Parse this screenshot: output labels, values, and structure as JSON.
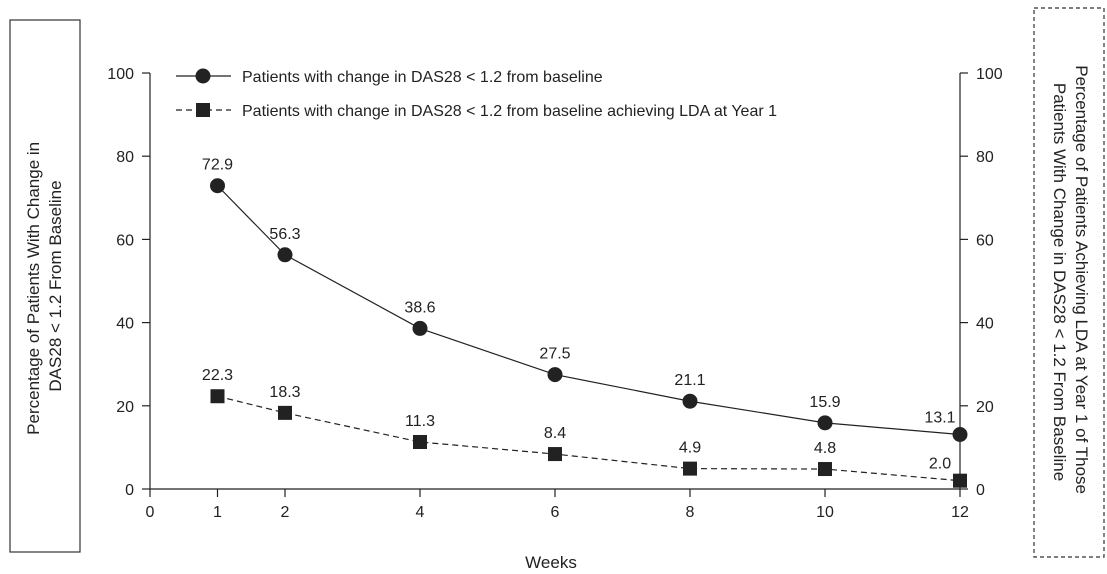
{
  "chart_data": {
    "type": "line",
    "xlabel": "Weeks",
    "ylabel": [
      "Percentage of Patients With Change in",
      "DAS28 < 1.2 From Baseline"
    ],
    "ylabel_right": [
      "Percentage of Patients Achieving LDA at Year 1 of Those",
      "Patients With Change in DAS28 < 1.2 From Baseline"
    ],
    "xlim": [
      0,
      12
    ],
    "ylim": [
      0,
      100
    ],
    "ylim_right": [
      0,
      100
    ],
    "x_ticks": [
      0,
      1,
      2,
      4,
      6,
      8,
      10,
      12
    ],
    "y_ticks": [
      0,
      20,
      40,
      60,
      80,
      100
    ],
    "y_ticks_right": [
      0,
      20,
      40,
      60,
      80,
      100
    ],
    "grid": false,
    "legend_position": "top-left",
    "series": [
      {
        "name": "Patients with change in DAS28 < 1.2 from baseline",
        "marker": "circle",
        "line_style": "solid",
        "axis": "left",
        "x": [
          1,
          2,
          4,
          6,
          8,
          10,
          12
        ],
        "values": [
          72.9,
          56.3,
          38.6,
          27.5,
          21.1,
          15.9,
          13.1
        ],
        "labels": [
          "72.9",
          "56.3",
          "38.6",
          "27.5",
          "21.1",
          "15.9",
          "13.1"
        ]
      },
      {
        "name": "Patients with change in DAS28 < 1.2 from baseline achieving LDA at Year 1",
        "marker": "square",
        "line_style": "dashed",
        "axis": "right",
        "x": [
          1,
          2,
          4,
          6,
          8,
          10,
          12
        ],
        "values": [
          22.3,
          18.3,
          11.3,
          8.4,
          4.9,
          4.8,
          2.0
        ],
        "labels": [
          "22.3",
          "18.3",
          "11.3",
          "8.4",
          "4.9",
          "4.8",
          "2.0"
        ]
      }
    ]
  }
}
